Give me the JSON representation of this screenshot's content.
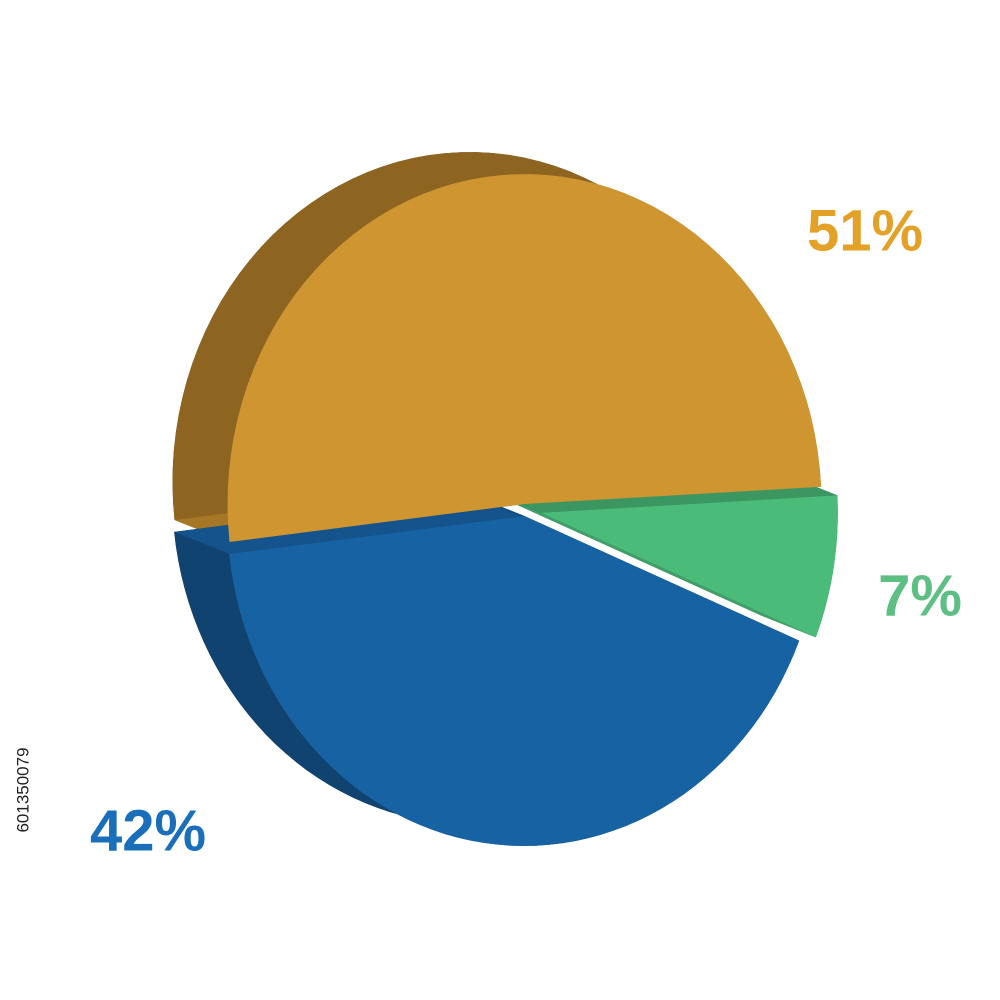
{
  "chart_data": {
    "type": "pie",
    "values": [
      51,
      42,
      7
    ],
    "value_labels": [
      "51%",
      "42%",
      "7%"
    ],
    "colors": [
      "#cf9530",
      "#1762a3",
      "#4bbb7a"
    ],
    "label_colors": [
      "#e3a127",
      "#1a6fba",
      "#5dbf84"
    ]
  },
  "image_id": "601350079"
}
